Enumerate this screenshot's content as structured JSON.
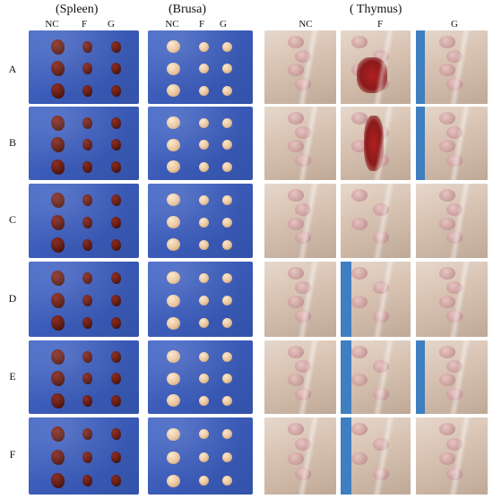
{
  "sections": [
    {
      "id": "spleen",
      "title": "(Spleen)",
      "columns": [
        "NC",
        "F",
        "G"
      ]
    },
    {
      "id": "brusa",
      "title": "(Brusa)",
      "columns": [
        "NC",
        "F",
        "G"
      ]
    },
    {
      "id": "thymus",
      "title": "( Thymus)",
      "columns": [
        "NC",
        "F",
        "G"
      ]
    }
  ],
  "rows": [
    "A",
    "B",
    "C",
    "D",
    "E",
    "F"
  ],
  "colors": {
    "panel_blue": "#3b5bb8",
    "spleen": "#5a1a14",
    "brusa": "#e8c39a",
    "thymus_tissue": "#d9c4b4",
    "thymus_lobe": "#c99a9a",
    "hemorrhage": "#8a1a1a"
  }
}
